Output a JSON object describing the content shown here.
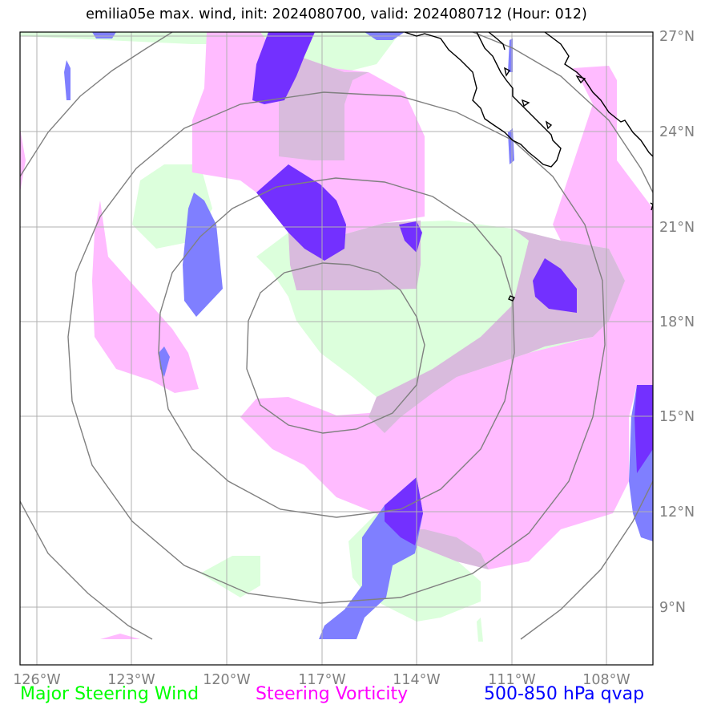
{
  "title": "emilia05e max. wind, init: 2024080700, valid: 2024080712 (Hour: 012)",
  "map": {
    "lon_labels": [
      "126°W",
      "123°W",
      "120°W",
      "117°W",
      "114°W",
      "111°W",
      "108°W"
    ],
    "lat_labels": [
      "27°N",
      "24°N",
      "21°N",
      "18°N",
      "15°N",
      "12°N",
      "9°N"
    ],
    "lon_range": [
      -126.5,
      -106.5
    ],
    "lat_range": [
      7.2,
      27.2
    ]
  },
  "legend": {
    "wind": {
      "label": "Major Steering Wind",
      "color": "#00ff00"
    },
    "vorticity": {
      "label": "Steering Vorticity",
      "color": "#ff00ff"
    },
    "qvap": {
      "label": "500-850 hPa qvap",
      "color": "#0000ff"
    }
  },
  "colors": {
    "wind_fill": "#dcffdc",
    "vorticity_fill": "#ffbbff",
    "overlap_fill": "#d9bbdd",
    "qvap_light": "#7f7fff",
    "qvap_dark": "#7330ff",
    "range_rings": "#808080",
    "gridlines": "#b0b0b0",
    "coastline": "#000000"
  }
}
